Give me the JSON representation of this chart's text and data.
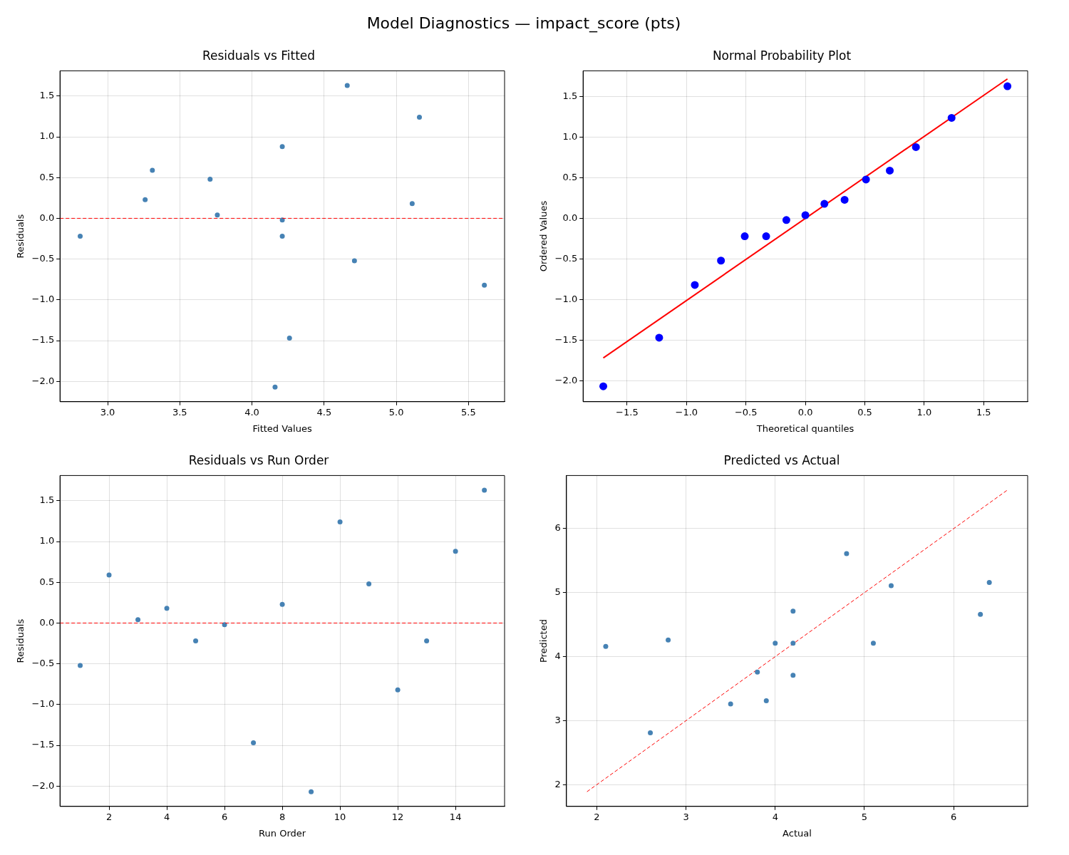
{
  "chart_data": [
    {
      "type": "scatter",
      "subtitle": "Model Diagnostics — impact_score (pts)",
      "title": "Residuals vs Fitted",
      "xlabel": "Fitted Values",
      "ylabel": "Residuals",
      "xlim": [
        2.67,
        5.75
      ],
      "ylim": [
        -2.25,
        1.81
      ],
      "xticks": [
        {
          "value": 3,
          "label": "3.0"
        },
        {
          "value": 3.5,
          "label": "3.5"
        },
        {
          "value": 4,
          "label": "4.0"
        },
        {
          "value": 4.5,
          "label": "4.5"
        },
        {
          "value": 5,
          "label": "5.0"
        },
        {
          "value": 5.5,
          "label": "5.5"
        }
      ],
      "yticks": [
        {
          "value": -2,
          "label": "−2.0"
        },
        {
          "value": -1.5,
          "label": "−1.5"
        },
        {
          "value": -1,
          "label": "−1.0"
        },
        {
          "value": -0.5,
          "label": "−0.5"
        },
        {
          "value": 0,
          "label": "0.0"
        },
        {
          "value": 0.5,
          "label": "0.5"
        },
        {
          "value": 1,
          "label": "1.0"
        },
        {
          "value": 1.5,
          "label": "1.5"
        }
      ],
      "grid": true,
      "marker": "circle",
      "legend": false,
      "series": [
        {
          "color": "#4682b4",
          "x": [
            2.81,
            3.26,
            3.31,
            3.71,
            3.76,
            4.21,
            4.21,
            4.21,
            4.26,
            4.16,
            4.66,
            4.71,
            5.11,
            5.16,
            5.61
          ],
          "values": [
            -0.22,
            0.23,
            0.59,
            0.48,
            0.04,
            0.88,
            -0.02,
            -0.22,
            -1.47,
            -2.07,
            1.63,
            -0.52,
            0.18,
            1.24,
            -0.82
          ]
        }
      ],
      "ref_lines": [
        {
          "axis": "y",
          "value": 0,
          "color": "#ff0000",
          "line_style": "dashed"
        }
      ]
    },
    {
      "type": "scatter",
      "title": "Normal Probability Plot",
      "xlabel": "Theoretical quantiles",
      "ylabel": "Ordered Values",
      "xlim": [
        -1.87,
        1.87
      ],
      "ylim": [
        -2.26,
        1.82
      ],
      "xticks": [
        {
          "value": -1.5,
          "label": "−1.5"
        },
        {
          "value": -1,
          "label": "−1.0"
        },
        {
          "value": -0.5,
          "label": "−0.5"
        },
        {
          "value": 0,
          "label": "0.0"
        },
        {
          "value": 0.5,
          "label": "0.5"
        },
        {
          "value": 1,
          "label": "1.0"
        },
        {
          "value": 1.5,
          "label": "1.5"
        }
      ],
      "yticks": [
        {
          "value": -2,
          "label": "−2.0"
        },
        {
          "value": -1.5,
          "label": "−1.5"
        },
        {
          "value": -1,
          "label": "−1.0"
        },
        {
          "value": -0.5,
          "label": "−0.5"
        },
        {
          "value": 0,
          "label": "0.0"
        },
        {
          "value": 0.5,
          "label": "0.5"
        },
        {
          "value": 1,
          "label": "1.0"
        },
        {
          "value": 1.5,
          "label": "1.5"
        }
      ],
      "grid": true,
      "marker": "circle",
      "legend": false,
      "series": [
        {
          "color": "#0000ff",
          "x": [
            -1.7,
            -1.23,
            -0.93,
            -0.71,
            -0.51,
            -0.33,
            -0.16,
            0,
            0.16,
            0.33,
            0.51,
            0.71,
            0.93,
            1.23,
            1.7
          ],
          "values": [
            -2.07,
            -1.47,
            -0.82,
            -0.52,
            -0.22,
            -0.22,
            -0.02,
            0.04,
            0.18,
            0.23,
            0.48,
            0.59,
            0.88,
            1.24,
            1.63
          ]
        },
        {
          "type": "line",
          "marker": "none",
          "color": "#ff0000",
          "line_style": "solid",
          "x": [
            -1.7,
            1.7
          ],
          "values": [
            -1.72,
            1.72
          ]
        }
      ]
    },
    {
      "type": "scatter",
      "title": "Residuals vs Run Order",
      "xlabel": "Run Order",
      "ylabel": "Residuals",
      "xlim": [
        0.3,
        15.7
      ],
      "ylim": [
        -2.25,
        1.81
      ],
      "xticks": [
        2,
        4,
        6,
        8,
        10,
        12,
        14
      ],
      "yticks": [
        {
          "value": -2,
          "label": "−2.0"
        },
        {
          "value": -1.5,
          "label": "−1.5"
        },
        {
          "value": -1,
          "label": "−1.0"
        },
        {
          "value": -0.5,
          "label": "−0.5"
        },
        {
          "value": 0,
          "label": "0.0"
        },
        {
          "value": 0.5,
          "label": "0.5"
        },
        {
          "value": 1,
          "label": "1.0"
        },
        {
          "value": 1.5,
          "label": "1.5"
        }
      ],
      "grid": true,
      "marker": "circle",
      "legend": false,
      "series": [
        {
          "color": "#4682b4",
          "x": [
            1,
            2,
            3,
            4,
            5,
            6,
            7,
            8,
            9,
            10,
            11,
            12,
            13,
            14,
            15
          ],
          "values": [
            -0.52,
            0.59,
            0.04,
            0.18,
            -0.22,
            -0.02,
            -1.47,
            0.23,
            -2.07,
            1.24,
            0.48,
            -0.82,
            -0.22,
            0.88,
            1.63
          ]
        }
      ],
      "ref_lines": [
        {
          "axis": "y",
          "value": 0,
          "color": "#ff0000",
          "line_style": "dashed"
        }
      ]
    },
    {
      "type": "scatter",
      "title": "Predicted vs Actual",
      "xlabel": "Actual",
      "ylabel": "Predicted",
      "xlim": [
        1.66,
        6.83
      ],
      "ylim": [
        1.66,
        6.83
      ],
      "xticks": [
        2,
        3,
        4,
        5,
        6
      ],
      "yticks": [
        2,
        3,
        4,
        5,
        6
      ],
      "grid": true,
      "marker": "circle",
      "legend": false,
      "series": [
        {
          "color": "#4682b4",
          "x": [
            2.6,
            3.5,
            3.9,
            4.2,
            3.8,
            5.1,
            4.2,
            4.0,
            2.8,
            2.1,
            6.3,
            4.2,
            5.3,
            6.4,
            4.8
          ],
          "values": [
            2.81,
            3.26,
            3.31,
            3.71,
            3.76,
            4.21,
            4.21,
            4.21,
            4.26,
            4.16,
            4.66,
            4.71,
            5.11,
            5.16,
            5.61
          ]
        },
        {
          "type": "line",
          "marker": "none",
          "color": "#ff0000",
          "line_style": "dashed",
          "x": [
            1.89,
            6.6
          ],
          "values": [
            1.89,
            6.6
          ]
        }
      ]
    }
  ]
}
